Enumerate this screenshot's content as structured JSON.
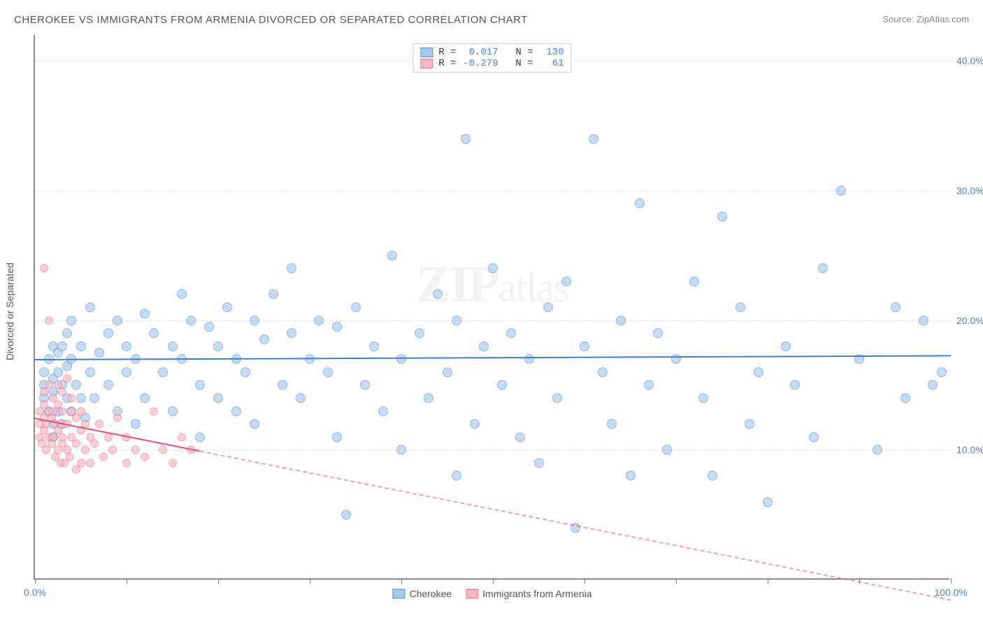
{
  "title": "CHEROKEE VS IMMIGRANTS FROM ARMENIA DIVORCED OR SEPARATED CORRELATION CHART",
  "source": {
    "label": "Source:",
    "text": "ZipAtlas.com"
  },
  "ylabel": "Divorced or Separated",
  "watermark": {
    "zip": "ZIP",
    "atlas": "atlas"
  },
  "chart": {
    "type": "scatter",
    "xlim": [
      0,
      100
    ],
    "ylim": [
      0,
      42
    ],
    "background_color": "#ffffff",
    "grid_color": "#dddddd",
    "x_ticks": [
      0,
      10,
      20,
      30,
      40,
      50,
      60,
      70,
      80,
      90,
      100
    ],
    "x_tick_labels": {
      "0": "0.0%",
      "100": "100.0%"
    },
    "y_ticks": [
      10,
      20,
      30,
      40
    ],
    "y_tick_labels": {
      "10": "10.0%",
      "20": "20.0%",
      "30": "30.0%",
      "40": "40.0%"
    },
    "series": [
      {
        "name": "Cherokee",
        "fill": "#a8c8ec",
        "stroke": "#5a8fd6",
        "R": "0.017",
        "N": "130",
        "trend": {
          "y_at_x0": 17.0,
          "y_at_x100": 17.3,
          "solid_until_x": 100,
          "color": "#3b7dd8",
          "width": 2
        },
        "points": [
          [
            1,
            14
          ],
          [
            1,
            15
          ],
          [
            1,
            16
          ],
          [
            1.5,
            13
          ],
          [
            1.5,
            17
          ],
          [
            2,
            11
          ],
          [
            2,
            12
          ],
          [
            2,
            14.5
          ],
          [
            2,
            15.5
          ],
          [
            2,
            18
          ],
          [
            2.5,
            13
          ],
          [
            2.5,
            16
          ],
          [
            2.5,
            17.5
          ],
          [
            3,
            12
          ],
          [
            3,
            15
          ],
          [
            3,
            18
          ],
          [
            3.5,
            14
          ],
          [
            3.5,
            16.5
          ],
          [
            3.5,
            19
          ],
          [
            4,
            13
          ],
          [
            4,
            17
          ],
          [
            4,
            20
          ],
          [
            4.5,
            15
          ],
          [
            5,
            14
          ],
          [
            5,
            18
          ],
          [
            5.5,
            12.5
          ],
          [
            6,
            16
          ],
          [
            6,
            21
          ],
          [
            6.5,
            14
          ],
          [
            7,
            17.5
          ],
          [
            8,
            15
          ],
          [
            8,
            19
          ],
          [
            9,
            13
          ],
          [
            9,
            20
          ],
          [
            10,
            18
          ],
          [
            10,
            16
          ],
          [
            11,
            12
          ],
          [
            11,
            17
          ],
          [
            12,
            20.5
          ],
          [
            12,
            14
          ],
          [
            13,
            19
          ],
          [
            14,
            16
          ],
          [
            15,
            18
          ],
          [
            15,
            13
          ],
          [
            16,
            17
          ],
          [
            16,
            22
          ],
          [
            17,
            20
          ],
          [
            18,
            11
          ],
          [
            18,
            15
          ],
          [
            19,
            19.5
          ],
          [
            20,
            14
          ],
          [
            20,
            18
          ],
          [
            21,
            21
          ],
          [
            22,
            13
          ],
          [
            22,
            17
          ],
          [
            23,
            16
          ],
          [
            24,
            12
          ],
          [
            24,
            20
          ],
          [
            25,
            18.5
          ],
          [
            26,
            22
          ],
          [
            27,
            15
          ],
          [
            28,
            19
          ],
          [
            28,
            24
          ],
          [
            29,
            14
          ],
          [
            30,
            17
          ],
          [
            31,
            20
          ],
          [
            32,
            16
          ],
          [
            33,
            11
          ],
          [
            33,
            19.5
          ],
          [
            34,
            5
          ],
          [
            35,
            21
          ],
          [
            36,
            15
          ],
          [
            37,
            18
          ],
          [
            38,
            13
          ],
          [
            39,
            25
          ],
          [
            40,
            10
          ],
          [
            40,
            17
          ],
          [
            42,
            19
          ],
          [
            43,
            14
          ],
          [
            44,
            22
          ],
          [
            45,
            16
          ],
          [
            46,
            8
          ],
          [
            46,
            20
          ],
          [
            47,
            34
          ],
          [
            48,
            12
          ],
          [
            49,
            18
          ],
          [
            50,
            24
          ],
          [
            51,
            15
          ],
          [
            52,
            19
          ],
          [
            53,
            11
          ],
          [
            54,
            17
          ],
          [
            55,
            9
          ],
          [
            56,
            21
          ],
          [
            57,
            14
          ],
          [
            58,
            23
          ],
          [
            59,
            4
          ],
          [
            60,
            18
          ],
          [
            61,
            34
          ],
          [
            62,
            16
          ],
          [
            63,
            12
          ],
          [
            64,
            20
          ],
          [
            65,
            8
          ],
          [
            66,
            29
          ],
          [
            67,
            15
          ],
          [
            68,
            19
          ],
          [
            69,
            10
          ],
          [
            70,
            17
          ],
          [
            72,
            23
          ],
          [
            73,
            14
          ],
          [
            74,
            8
          ],
          [
            75,
            28
          ],
          [
            77,
            21
          ],
          [
            78,
            12
          ],
          [
            79,
            16
          ],
          [
            80,
            6
          ],
          [
            82,
            18
          ],
          [
            83,
            15
          ],
          [
            85,
            11
          ],
          [
            86,
            24
          ],
          [
            88,
            30
          ],
          [
            90,
            17
          ],
          [
            92,
            10
          ],
          [
            94,
            21
          ],
          [
            95,
            14
          ],
          [
            97,
            20
          ],
          [
            98,
            15
          ],
          [
            99,
            16
          ]
        ]
      },
      {
        "name": "Immigrants from Armenia",
        "fill": "#f7b8c4",
        "stroke": "#e87a94",
        "R": "-0.279",
        "N": "61",
        "trend": {
          "y_at_x0": 12.5,
          "y_at_x100": -1.5,
          "solid_until_x": 18,
          "color": "#e84c7a",
          "width": 2
        },
        "points": [
          [
            0.5,
            11
          ],
          [
            0.5,
            12
          ],
          [
            0.5,
            13
          ],
          [
            0.8,
            10.5
          ],
          [
            1,
            11.5
          ],
          [
            1,
            12.5
          ],
          [
            1,
            13.5
          ],
          [
            1,
            14.5
          ],
          [
            1,
            24
          ],
          [
            1.2,
            10
          ],
          [
            1.2,
            12
          ],
          [
            1.5,
            11
          ],
          [
            1.5,
            13
          ],
          [
            1.5,
            15
          ],
          [
            1.5,
            20
          ],
          [
            1.8,
            10.5
          ],
          [
            1.8,
            12.5
          ],
          [
            2,
            11
          ],
          [
            2,
            13
          ],
          [
            2,
            14
          ],
          [
            2.2,
            9.5
          ],
          [
            2.2,
            12
          ],
          [
            2.5,
            10
          ],
          [
            2.5,
            11.5
          ],
          [
            2.5,
            13.5
          ],
          [
            2.5,
            15
          ],
          [
            2.8,
            9
          ],
          [
            2.8,
            12
          ],
          [
            3,
            10.5
          ],
          [
            3,
            11
          ],
          [
            3,
            13
          ],
          [
            3,
            14.5
          ],
          [
            3.2,
            9
          ],
          [
            3.5,
            10
          ],
          [
            3.5,
            12
          ],
          [
            3.5,
            15.5
          ],
          [
            3.8,
            9.5
          ],
          [
            4,
            11
          ],
          [
            4,
            13
          ],
          [
            4,
            14
          ],
          [
            4.5,
            8.5
          ],
          [
            4.5,
            10.5
          ],
          [
            4.5,
            12.5
          ],
          [
            5,
            9
          ],
          [
            5,
            11.5
          ],
          [
            5,
            13
          ],
          [
            5.5,
            10
          ],
          [
            5.5,
            12
          ],
          [
            6,
            9
          ],
          [
            6,
            11
          ],
          [
            6.5,
            10.5
          ],
          [
            7,
            12
          ],
          [
            7.5,
            9.5
          ],
          [
            8,
            11
          ],
          [
            8.5,
            10
          ],
          [
            9,
            12.5
          ],
          [
            10,
            9
          ],
          [
            10,
            11
          ],
          [
            11,
            10
          ],
          [
            12,
            9.5
          ],
          [
            13,
            13
          ],
          [
            14,
            10
          ],
          [
            15,
            9
          ],
          [
            16,
            11
          ],
          [
            17,
            10
          ]
        ]
      }
    ]
  }
}
